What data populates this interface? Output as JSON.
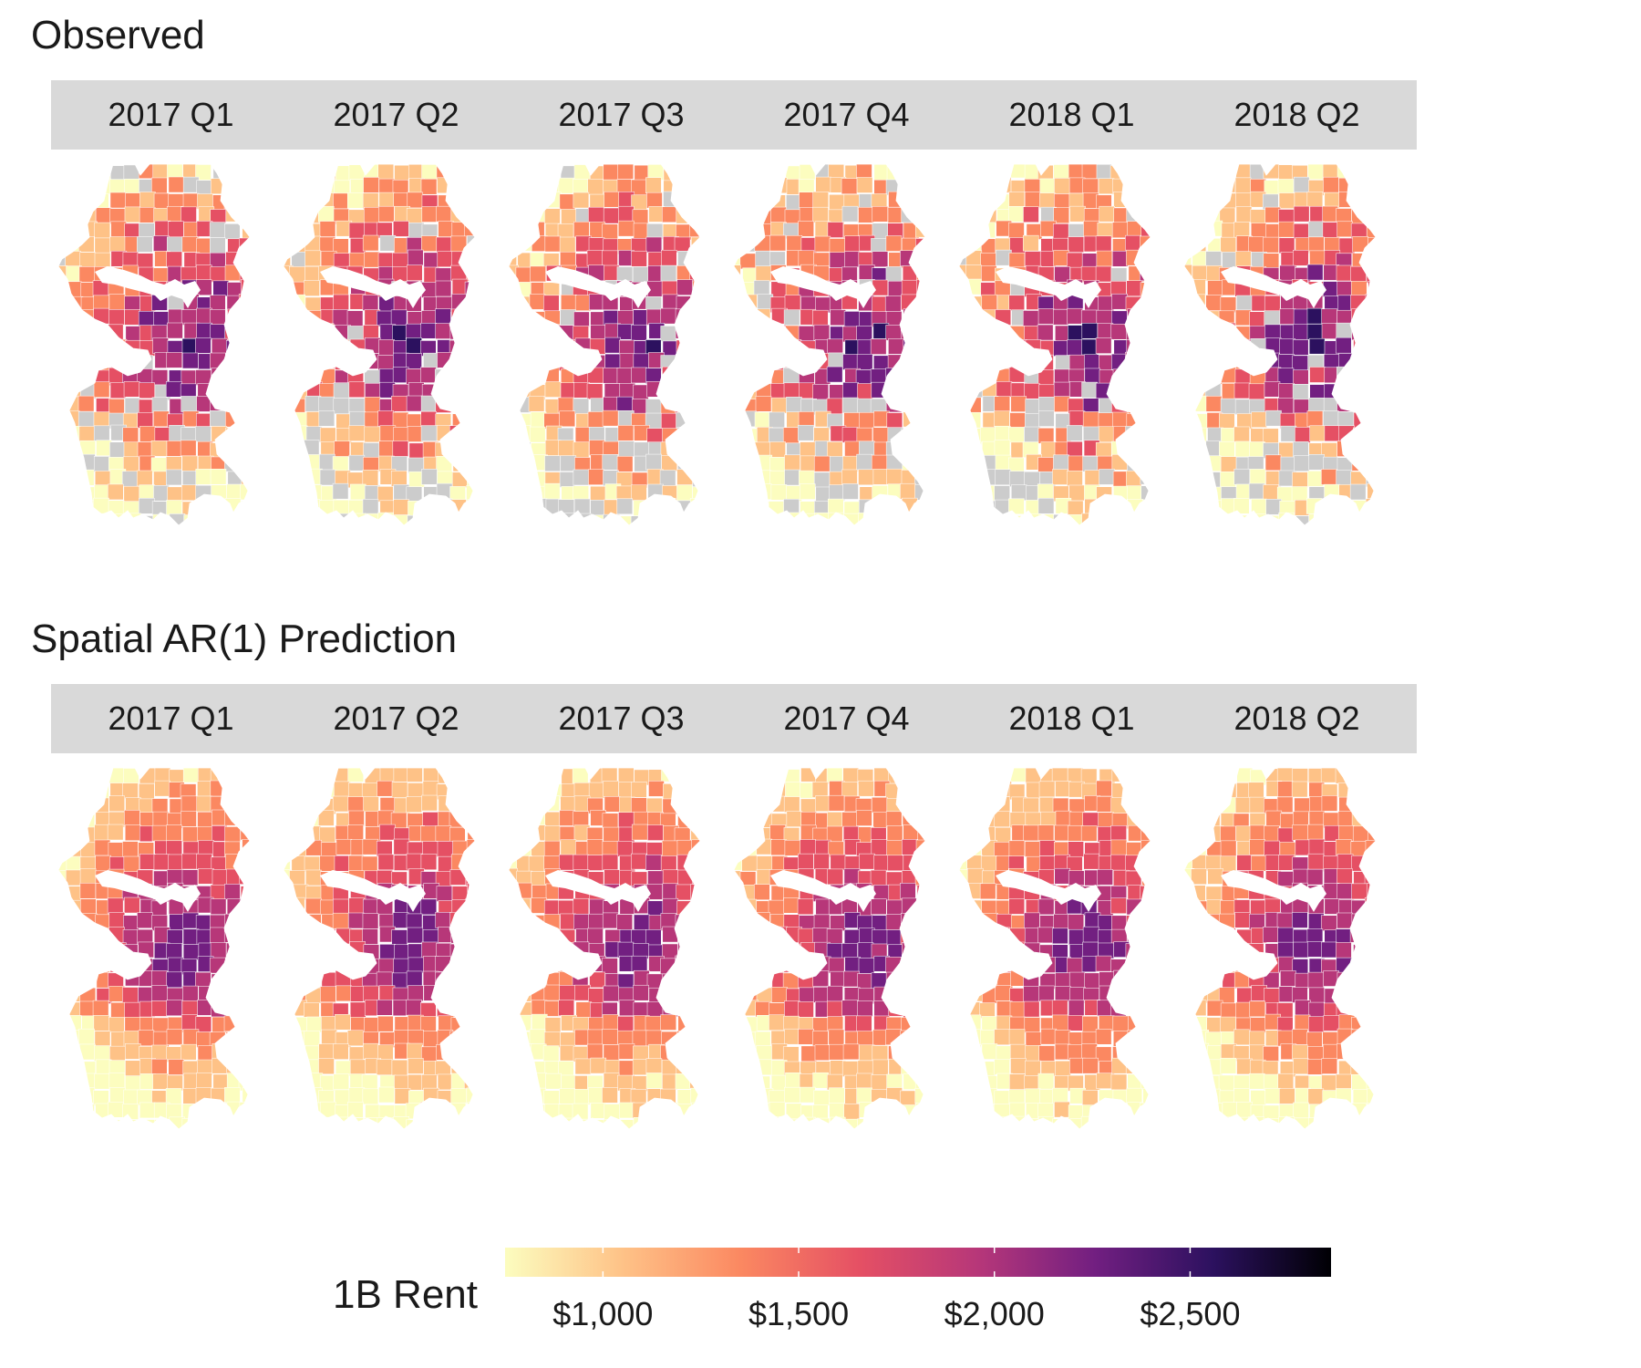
{
  "sections": {
    "observed": {
      "title": "Observed"
    },
    "predicted": {
      "title": "Spatial AR(1) Prediction"
    }
  },
  "panels": [
    {
      "label": "2017 Q1"
    },
    {
      "label": "2017 Q2"
    },
    {
      "label": "2017 Q3"
    },
    {
      "label": "2017 Q4"
    },
    {
      "label": "2018 Q1"
    },
    {
      "label": "2018 Q2"
    }
  ],
  "legend": {
    "title": "1B Rent",
    "range": [
      750,
      2860
    ],
    "ticks": [
      {
        "value": 1000,
        "label": "$1,000"
      },
      {
        "value": 1500,
        "label": "$1,500"
      },
      {
        "value": 2000,
        "label": "$2,000"
      },
      {
        "value": 2500,
        "label": "$2,500"
      }
    ],
    "palette": [
      "#fcfdbf",
      "#fec287",
      "#fb8861",
      "#e55064",
      "#b73779",
      "#721f81",
      "#2c115f",
      "#000004"
    ]
  },
  "colors": {
    "missing": "#cccccc",
    "strip_background": "#d9d9d9",
    "boundary": "#ffffff"
  }
}
